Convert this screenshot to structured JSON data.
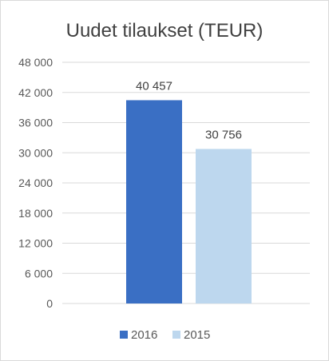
{
  "chart_data": {
    "type": "bar",
    "title": "Uudet tilaukset (TEUR)",
    "series": [
      {
        "name": "2016",
        "value": 40457,
        "label": "40 457",
        "color": "#3a6fc4"
      },
      {
        "name": "2015",
        "value": 30756,
        "label": "30 756",
        "color": "#bdd7ee"
      }
    ],
    "ylim": [
      0,
      48000
    ],
    "yticks": [
      0,
      6000,
      12000,
      18000,
      24000,
      30000,
      36000,
      42000,
      48000
    ],
    "ytick_labels": [
      "0",
      "6 000",
      "12 000",
      "18 000",
      "24 000",
      "30 000",
      "36 000",
      "42 000",
      "48 000"
    ],
    "grid": true,
    "legend_position": "bottom",
    "xlabel": "",
    "ylabel": ""
  }
}
